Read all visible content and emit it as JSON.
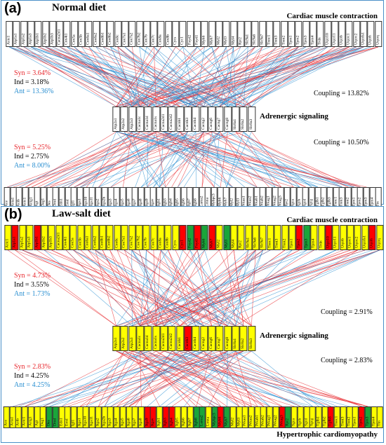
{
  "colors": {
    "syn": "#e8282e",
    "ant": "#2a8fd1",
    "yellow": "#ffff00",
    "red": "#ff0000",
    "green": "#1aa53a",
    "white": "#ffffff",
    "frame": "#4a90c8"
  },
  "labels": {
    "cardiac": "Cardiac muscle contraction",
    "adrenergic": "Adrenergic signaling",
    "hypertrophic": "Hypertrophic cardiomyopathy"
  },
  "genes": {
    "cardiac": [
      "Actc1",
      "Atp1a1",
      "Atp1a2",
      "Atp1a3",
      "Atp1b1",
      "Atp1b2",
      "Atp1b3",
      "Cacna2d1",
      "Cox4i1",
      "Cox5a",
      "Cox5b",
      "Cox6a1",
      "Cox6a2",
      "Cox6b1",
      "Cox6b2",
      "Cox6c",
      "Cox7a1",
      "Cox7a2",
      "Cox7b2",
      "Cox7b",
      "Cox7c",
      "Cox8a",
      "Cox8b",
      "Cycs",
      "Cyc1",
      "Fxyd2",
      "Fxyd1",
      "Myh6",
      "Myh7",
      "Myl2",
      "Myl3",
      "Myl4",
      "Ryr2",
      "Slc9a1",
      "Slc9a6",
      "Slc9a7",
      "Tnnc1",
      "Tnni3",
      "Tnnt2",
      "Tpm1",
      "Tpm2",
      "Tpm3",
      "Tpm4",
      "Trdn",
      "Uqcr10",
      "Uqcr11",
      "Uqcrb",
      "Uqcrc1",
      "Uqcrc2",
      "Uqcrfs1",
      "Uqcrh",
      "Uqcrq"
    ],
    "adrenergic": [
      "Atp2a1",
      "Atp2a2",
      "Atp2a3",
      "Cacna1c",
      "Cacna1d",
      "Cacna1s",
      "Cacna2d1",
      "Cacna2d2",
      "Cacnb1",
      "Cacnb3",
      "Cacnb4",
      "Cacng2",
      "Cacng6",
      "Cacng7",
      "Cacng8",
      "Slc8a1",
      "Slc8a2",
      "Slc8a3"
    ],
    "hypertrophic": [
      "Ace",
      "Acta1",
      "Actb",
      "Actc1",
      "Actg1",
      "Agt",
      "Dag1",
      "Des",
      "Dmd",
      "Edn1",
      "Emd",
      "Igf1",
      "Itga1",
      "Itga10",
      "Itga11",
      "Itga2",
      "Itga2b",
      "Itga3",
      "Itga4",
      "Itga5",
      "Itga6",
      "Itga7",
      "Itga8",
      "Itga9",
      "Itgav",
      "Itgb1",
      "Itgb3",
      "Itgb4",
      "Itgb5",
      "Itgb6",
      "Itgb7",
      "Itgb8",
      "Lama2",
      "Lmna",
      "Mybpc3",
      "Myh6",
      "Myh7",
      "Myl2",
      "Myl3",
      "Prkaa1",
      "Prkaa2",
      "Prkab1",
      "Prkab2",
      "Prkag1",
      "Prkag2",
      "Prkag3",
      "Ryr2",
      "Sgca",
      "Sgcb",
      "Sgcd",
      "Sgcg",
      "Tgfb1",
      "Tgfb2",
      "Tgfb3",
      "Tnnc1",
      "Tnni3",
      "Tnnt2",
      "Tpm1",
      "Tpm2",
      "Tpm3",
      "Tpm4",
      "Ttn"
    ]
  },
  "panel_a": {
    "letter": "(a)",
    "title": "Normal diet",
    "stats_top": {
      "syn": "Syn  =  3.64%",
      "ind": "Ind  =  3.18%",
      "ant": "Ant  = 13.36%"
    },
    "stats_bottom": {
      "syn": "Syn  =  5.25%",
      "ind": "Ind  =  2.75%",
      "ant": "Ant  =  8.00%"
    },
    "coupling_top": "Coupling = 13.82%",
    "coupling_bottom": "Coupling = 10.50%"
  },
  "panel_b": {
    "letter": "(b)",
    "title": "Law-salt diet",
    "stats_top": {
      "syn": "Syn  = 4.73%",
      "ind": "Ind  = 3.55%",
      "ant": "Ant  = 1.73%"
    },
    "stats_bottom": {
      "syn": "Syn  = 2.83%",
      "ind": "Ind  = 4.25%",
      "ant": "Ant  = 4.25%"
    },
    "coupling_top": "Coupling = 2.91%",
    "coupling_bottom": "Coupling = 2.83%",
    "box_colors": {
      "cardiac": [
        "yellow",
        "red",
        "yellow",
        "yellow",
        "red",
        "yellow",
        "yellow",
        "yellow",
        "yellow",
        "yellow",
        "yellow",
        "yellow",
        "yellow",
        "yellow",
        "yellow",
        "yellow",
        "yellow",
        "yellow",
        "yellow",
        "yellow",
        "yellow",
        "yellow",
        "yellow",
        "yellow",
        "red",
        "green",
        "red",
        "green",
        "red",
        "yellow",
        "green",
        "yellow",
        "yellow",
        "yellow",
        "yellow",
        "yellow",
        "yellow",
        "yellow",
        "yellow",
        "yellow",
        "red",
        "green",
        "yellow",
        "yellow",
        "red",
        "yellow",
        "yellow",
        "yellow",
        "yellow",
        "yellow",
        "red",
        "yellow"
      ],
      "adrenergic": [
        "yellow",
        "yellow",
        "yellow",
        "yellow",
        "yellow",
        "yellow",
        "yellow",
        "yellow",
        "yellow",
        "red",
        "yellow",
        "yellow",
        "yellow",
        "yellow",
        "yellow",
        "yellow",
        "yellow",
        "yellow"
      ],
      "hypertrophic": [
        "yellow",
        "yellow",
        "yellow",
        "yellow",
        "yellow",
        "yellow",
        "yellow",
        "green",
        "green",
        "yellow",
        "yellow",
        "yellow",
        "yellow",
        "yellow",
        "yellow",
        "yellow",
        "yellow",
        "yellow",
        "yellow",
        "yellow",
        "yellow",
        "yellow",
        "yellow",
        "red",
        "red",
        "yellow",
        "red",
        "red",
        "yellow",
        "yellow",
        "yellow",
        "green",
        "green",
        "yellow",
        "green",
        "red",
        "green",
        "yellow",
        "yellow",
        "yellow",
        "yellow",
        "yellow",
        "yellow",
        "yellow",
        "yellow",
        "red",
        "green",
        "yellow",
        "yellow",
        "yellow",
        "yellow",
        "yellow",
        "yellow",
        "red",
        "yellow",
        "yellow",
        "yellow",
        "yellow",
        "red",
        "green",
        "yellow",
        "yellow"
      ]
    }
  }
}
